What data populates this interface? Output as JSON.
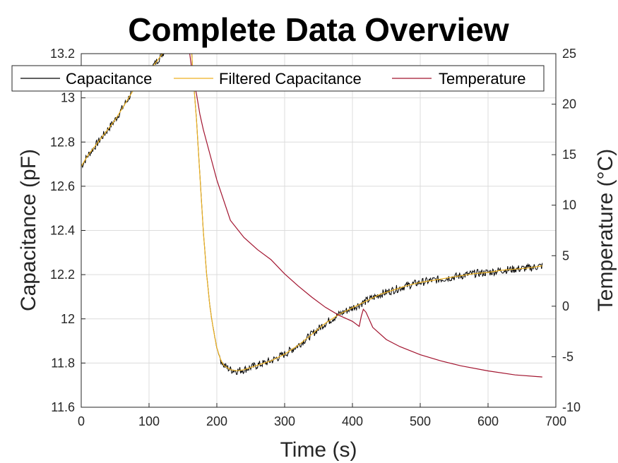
{
  "chart_data": {
    "type": "line",
    "title": "Complete Data Overview",
    "xlabel": "Time (s)",
    "ylabel_left": "Capacitance (pF)",
    "ylabel_right": "Temperature (°C)",
    "xlim": [
      0,
      700
    ],
    "ylim_left": [
      11.6,
      13.2
    ],
    "ylim_right": [
      -10,
      25
    ],
    "x_ticks": [
      "0",
      "100",
      "200",
      "300",
      "400",
      "500",
      "600",
      "700"
    ],
    "y_left_ticks": [
      "11.6",
      "11.8",
      "12",
      "12.2",
      "12.4",
      "12.6",
      "12.8",
      "13",
      "13.2"
    ],
    "y_right_ticks": [
      "-10",
      "-5",
      "0",
      "5",
      "10",
      "15",
      "20",
      "25"
    ],
    "grid": true,
    "legend_position": "top",
    "series": [
      {
        "name": "Capacitance",
        "axis": "left",
        "color": "#000000",
        "noisy": true,
        "x": [
          0,
          10,
          20,
          30,
          40,
          50,
          60,
          70,
          80,
          90,
          100,
          120,
          140,
          160,
          165,
          170,
          175,
          180,
          185,
          190,
          195,
          200,
          205,
          210,
          220,
          230,
          240,
          260,
          280,
          300,
          320,
          340,
          360,
          380,
          400,
          420,
          440,
          460,
          480,
          500,
          520,
          540,
          560,
          580,
          600,
          620,
          640,
          660,
          680
        ],
        "y": [
          12.69,
          12.74,
          12.78,
          12.82,
          12.86,
          12.9,
          12.95,
          13.0,
          13.05,
          13.09,
          13.12,
          13.2,
          13.3,
          13.35,
          13.1,
          12.9,
          12.65,
          12.4,
          12.2,
          12.05,
          11.95,
          11.87,
          11.82,
          11.79,
          11.77,
          11.765,
          11.77,
          11.79,
          11.81,
          11.84,
          11.88,
          11.93,
          11.98,
          12.02,
          12.05,
          12.08,
          12.11,
          12.13,
          12.15,
          12.165,
          12.175,
          12.185,
          12.195,
          12.205,
          12.21,
          12.22,
          12.225,
          12.23,
          12.24
        ]
      },
      {
        "name": "Filtered Capacitance",
        "axis": "left",
        "color": "#EDB120",
        "noisy": false,
        "x": [
          0,
          10,
          20,
          30,
          40,
          50,
          60,
          70,
          80,
          90,
          100,
          120,
          140,
          160,
          165,
          170,
          175,
          180,
          185,
          190,
          195,
          200,
          205,
          210,
          220,
          230,
          240,
          260,
          280,
          300,
          320,
          340,
          360,
          380,
          400,
          420,
          440,
          460,
          480,
          500,
          520,
          540,
          560,
          580,
          600,
          620,
          640,
          660,
          680
        ],
        "y": [
          12.69,
          12.74,
          12.78,
          12.82,
          12.86,
          12.9,
          12.95,
          13.0,
          13.05,
          13.09,
          13.12,
          13.2,
          13.3,
          13.35,
          13.1,
          12.9,
          12.65,
          12.4,
          12.2,
          12.05,
          11.95,
          11.87,
          11.82,
          11.79,
          11.77,
          11.765,
          11.77,
          11.79,
          11.81,
          11.84,
          11.88,
          11.93,
          11.98,
          12.02,
          12.05,
          12.08,
          12.11,
          12.13,
          12.15,
          12.165,
          12.175,
          12.185,
          12.195,
          12.205,
          12.21,
          12.22,
          12.225,
          12.23,
          12.24
        ]
      },
      {
        "name": "Temperature",
        "axis": "right",
        "color": "#A2142F",
        "noisy": false,
        "x": [
          160,
          165,
          170,
          175,
          180,
          190,
          200,
          210,
          220,
          240,
          260,
          280,
          300,
          320,
          340,
          360,
          380,
          400,
          410,
          413,
          416,
          420,
          430,
          450,
          470,
          500,
          530,
          560,
          600,
          640,
          680
        ],
        "y": [
          25,
          22.5,
          21,
          19,
          17.5,
          15,
          12.5,
          10.5,
          8.5,
          6.8,
          5.6,
          4.6,
          3.2,
          2.0,
          0.9,
          -0.1,
          -0.9,
          -1.5,
          -2.0,
          -1.0,
          -0.3,
          -0.6,
          -2.1,
          -3.3,
          -4.0,
          -4.8,
          -5.4,
          -5.9,
          -6.4,
          -6.8,
          -7.0
        ]
      }
    ]
  }
}
